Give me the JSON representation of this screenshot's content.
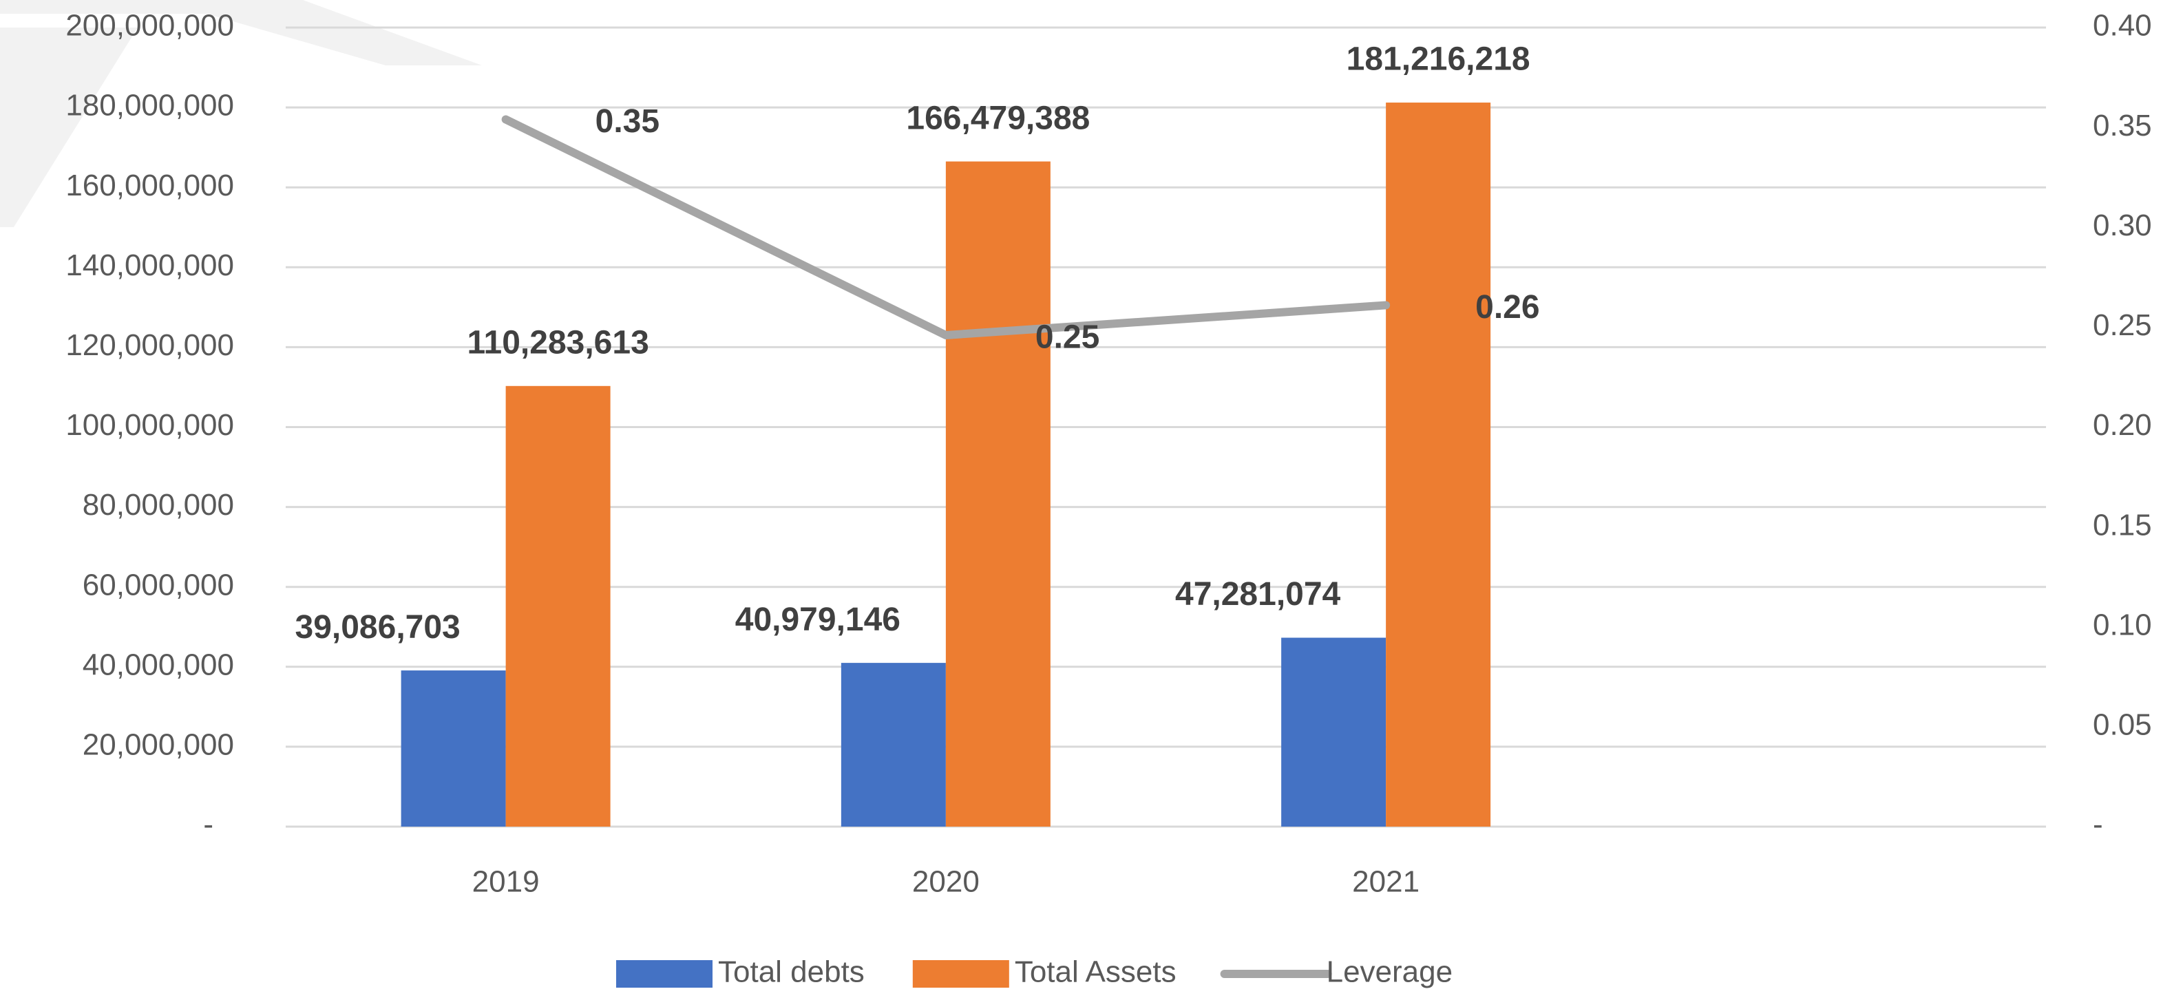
{
  "chart_data": {
    "type": "bar",
    "categories": [
      "2019",
      "2020",
      "2021",
      null
    ],
    "series": [
      {
        "name": "Total debts",
        "type": "bar",
        "color": "#4472c4",
        "values": [
          39086703,
          40979146,
          47281074,
          null
        ],
        "value_labels": [
          "39,086,703",
          "40,979,146",
          "47,281,074",
          null
        ]
      },
      {
        "name": "Total Assets",
        "type": "bar",
        "color": "#ed7d31",
        "values": [
          110283613,
          166479388,
          181216218,
          null
        ],
        "value_labels": [
          "110,283,613",
          "166,479,388",
          "181,216,218",
          null
        ]
      },
      {
        "name": "Leverage",
        "type": "line",
        "axis": "y2",
        "color": "#a5a5a5",
        "values": [
          0.354,
          0.246,
          0.261,
          null
        ],
        "value_labels": [
          "0.35",
          "0.25",
          "0.26",
          null
        ]
      }
    ],
    "ylim": [
      0,
      200000000
    ],
    "yticks": [
      {
        "value": 0,
        "label": "-"
      },
      {
        "value": 20000000,
        "label": "20,000,000"
      },
      {
        "value": 40000000,
        "label": "40,000,000"
      },
      {
        "value": 60000000,
        "label": "60,000,000"
      },
      {
        "value": 80000000,
        "label": "80,000,000"
      },
      {
        "value": 100000000,
        "label": "100,000,000"
      },
      {
        "value": 120000000,
        "label": "120,000,000"
      },
      {
        "value": 140000000,
        "label": "140,000,000"
      },
      {
        "value": 160000000,
        "label": "160,000,000"
      },
      {
        "value": 180000000,
        "label": "180,000,000"
      },
      {
        "value": 200000000,
        "label": "200,000,000"
      }
    ],
    "y2lim": [
      0,
      0.4
    ],
    "y2ticks": [
      {
        "value": 0,
        "label": "-"
      },
      0.05,
      {
        "value": 0.1,
        "label": "0.10"
      },
      0.15,
      {
        "value": 0.2,
        "label": "0.20"
      },
      0.25,
      {
        "value": 0.3,
        "label": "0.30"
      },
      0.35,
      {
        "value": 0.4,
        "label": "0.40"
      }
    ],
    "grid": true,
    "legend": "bottom"
  }
}
